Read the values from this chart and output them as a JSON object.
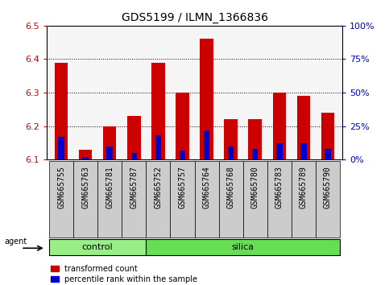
{
  "title": "GDS5199 / ILMN_1366836",
  "samples": [
    "GSM665755",
    "GSM665763",
    "GSM665781",
    "GSM665787",
    "GSM665752",
    "GSM665757",
    "GSM665764",
    "GSM665768",
    "GSM665780",
    "GSM665783",
    "GSM665789",
    "GSM665790"
  ],
  "transformed_count": [
    6.39,
    6.13,
    6.2,
    6.23,
    6.39,
    6.3,
    6.46,
    6.22,
    6.22,
    6.3,
    6.29,
    6.24
  ],
  "percentile_rank_pct": [
    17,
    2,
    10,
    5,
    18,
    7,
    22,
    10,
    8,
    12,
    12,
    8
  ],
  "groups": [
    {
      "label": "control",
      "start": 0,
      "end": 4,
      "color": "#99ee88"
    },
    {
      "label": "silica",
      "start": 4,
      "end": 12,
      "color": "#66dd55"
    }
  ],
  "bar_bottom": 6.1,
  "ylim_left": [
    6.1,
    6.5
  ],
  "ylim_right": [
    0,
    100
  ],
  "yticks_left": [
    6.1,
    6.2,
    6.3,
    6.4,
    6.5
  ],
  "yticks_right": [
    0,
    25,
    50,
    75,
    100
  ],
  "ytick_labels_right": [
    "0%",
    "25%",
    "50%",
    "75%",
    "100%"
  ],
  "bar_color_red": "#cc0000",
  "bar_color_blue": "#0000cc",
  "left_tick_color": "#cc0000",
  "right_tick_color": "#0000cc",
  "agent_label": "agent",
  "bar_width": 0.55,
  "blue_bar_width": 0.25,
  "xtick_bg": "#cccccc",
  "plot_bg": "#f5f5f5",
  "title_fontsize": 10,
  "tick_fontsize": 8,
  "xtick_fontsize": 7
}
